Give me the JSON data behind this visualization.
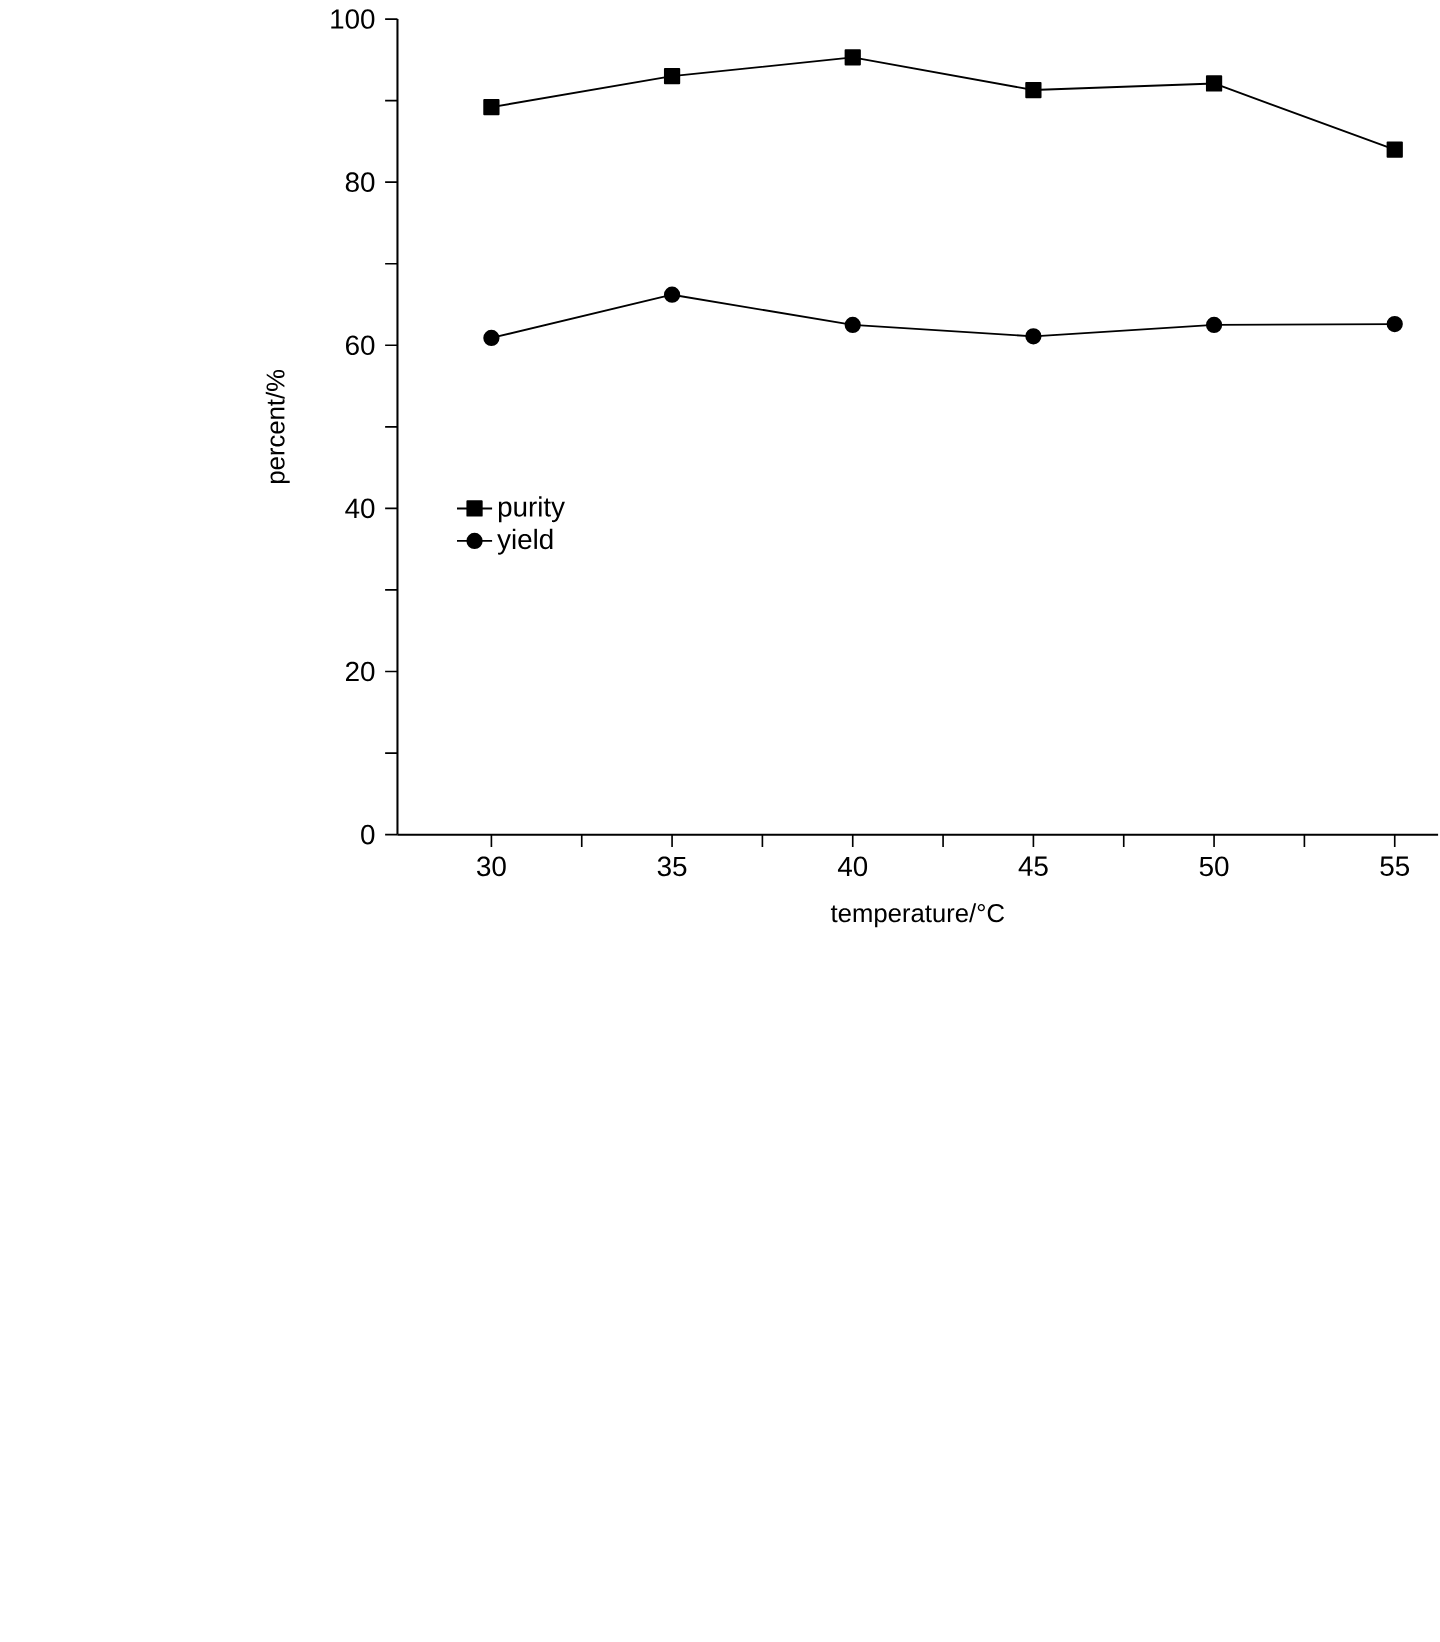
{
  "chart_data": {
    "type": "line",
    "xlabel": "temperature/°C",
    "ylabel": "percent/%",
    "x": [
      30,
      35,
      40,
      45,
      50,
      55
    ],
    "series": [
      {
        "name": "purity",
        "color": "#000000",
        "marker": "square",
        "values": [
          89.2,
          93.0,
          95.3,
          91.3,
          92.1,
          84.0
        ]
      },
      {
        "name": "yield",
        "color": "#000000",
        "marker": "circle",
        "values": [
          60.9,
          66.2,
          62.5,
          61.1,
          62.5,
          62.6
        ]
      }
    ],
    "xlim": [
      27.4,
      56.2
    ],
    "xticks": [
      30,
      {
        "value": 32.5,
        "label": null
      },
      35,
      {
        "value": 37.5,
        "label": null
      },
      40,
      {
        "value": 42.5,
        "label": null
      },
      45,
      {
        "value": 47.5,
        "label": null
      },
      50,
      {
        "value": 52.5,
        "label": null
      },
      55
    ],
    "ylim": [
      0,
      100
    ],
    "yticks": [
      0,
      {
        "value": 10,
        "label": null
      },
      20,
      {
        "value": 30,
        "label": null
      },
      40,
      {
        "value": 50,
        "label": null
      },
      60,
      {
        "value": 70,
        "label": null
      },
      80,
      {
        "value": 90,
        "label": null
      },
      100
    ],
    "grid": false,
    "legend": "left",
    "line_style": "solid"
  }
}
